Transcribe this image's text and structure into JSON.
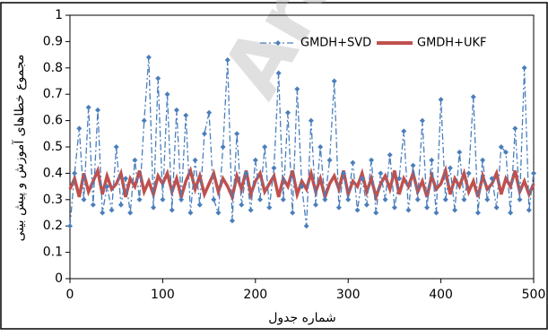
{
  "chart_data": {
    "type": "line",
    "y_label": "مجموع خطاهای آموزش و پیش بینی",
    "x_label": "شماره جدول",
    "watermark": "Arc",
    "xlim": [
      0,
      500
    ],
    "xticks": [
      0,
      100,
      200,
      300,
      400,
      500
    ],
    "ylim": [
      0,
      1
    ],
    "yticks": [
      0,
      0.1,
      0.2,
      0.3,
      0.4,
      0.5,
      0.6,
      0.7,
      0.8,
      0.9,
      1
    ],
    "legend": "top-right",
    "x": [
      0,
      5,
      10,
      15,
      20,
      25,
      30,
      35,
      40,
      45,
      50,
      55,
      60,
      65,
      70,
      75,
      80,
      85,
      90,
      95,
      100,
      105,
      110,
      115,
      120,
      125,
      130,
      135,
      140,
      145,
      150,
      155,
      160,
      165,
      170,
      175,
      180,
      185,
      190,
      195,
      200,
      205,
      210,
      215,
      220,
      225,
      230,
      235,
      240,
      245,
      250,
      255,
      260,
      265,
      270,
      275,
      280,
      285,
      290,
      295,
      300,
      305,
      310,
      315,
      320,
      325,
      330,
      335,
      340,
      345,
      350,
      355,
      360,
      365,
      370,
      375,
      380,
      385,
      390,
      395,
      400,
      405,
      410,
      415,
      420,
      425,
      430,
      435,
      440,
      445,
      450,
      455,
      460,
      465,
      470,
      475,
      480,
      485,
      490,
      495,
      500
    ],
    "series": [
      {
        "name": "GMDH+SVD",
        "color": "#4a7ebb",
        "values": [
          0.2,
          0.4,
          0.57,
          0.3,
          0.65,
          0.28,
          0.64,
          0.25,
          0.35,
          0.26,
          0.5,
          0.28,
          0.38,
          0.25,
          0.45,
          0.3,
          0.6,
          0.84,
          0.27,
          0.76,
          0.3,
          0.7,
          0.26,
          0.64,
          0.3,
          0.62,
          0.25,
          0.45,
          0.28,
          0.55,
          0.63,
          0.3,
          0.25,
          0.5,
          0.83,
          0.22,
          0.55,
          0.28,
          0.4,
          0.26,
          0.45,
          0.3,
          0.5,
          0.27,
          0.42,
          0.78,
          0.3,
          0.63,
          0.25,
          0.72,
          0.35,
          0.2,
          0.6,
          0.28,
          0.5,
          0.3,
          0.45,
          0.75,
          0.27,
          0.4,
          0.3,
          0.44,
          0.26,
          0.38,
          0.28,
          0.45,
          0.25,
          0.4,
          0.3,
          0.47,
          0.27,
          0.38,
          0.56,
          0.26,
          0.43,
          0.3,
          0.6,
          0.27,
          0.45,
          0.25,
          0.68,
          0.3,
          0.42,
          0.26,
          0.48,
          0.3,
          0.4,
          0.69,
          0.25,
          0.45,
          0.3,
          0.38,
          0.27,
          0.5,
          0.48,
          0.25,
          0.57,
          0.3,
          0.8,
          0.26,
          0.4
        ]
      },
      {
        "name": "GMDH+UKF",
        "color": "#c0504d",
        "values": [
          0.34,
          0.38,
          0.31,
          0.4,
          0.33,
          0.37,
          0.41,
          0.32,
          0.39,
          0.34,
          0.36,
          0.4,
          0.31,
          0.38,
          0.35,
          0.41,
          0.33,
          0.37,
          0.32,
          0.39,
          0.36,
          0.4,
          0.33,
          0.38,
          0.31,
          0.37,
          0.41,
          0.34,
          0.39,
          0.32,
          0.36,
          0.4,
          0.33,
          0.38,
          0.35,
          0.31,
          0.39,
          0.34,
          0.41,
          0.32,
          0.37,
          0.4,
          0.33,
          0.36,
          0.39,
          0.31,
          0.38,
          0.35,
          0.41,
          0.32,
          0.37,
          0.34,
          0.4,
          0.33,
          0.38,
          0.31,
          0.36,
          0.39,
          0.34,
          0.41,
          0.32,
          0.37,
          0.35,
          0.4,
          0.33,
          0.38,
          0.31,
          0.36,
          0.39,
          0.34,
          0.41,
          0.32,
          0.38,
          0.35,
          0.4,
          0.33,
          0.37,
          0.31,
          0.39,
          0.34,
          0.36,
          0.41,
          0.32,
          0.38,
          0.35,
          0.4,
          0.33,
          0.37,
          0.31,
          0.39,
          0.34,
          0.36,
          0.4,
          0.32,
          0.38,
          0.35,
          0.41,
          0.33,
          0.37,
          0.32,
          0.36
        ]
      }
    ]
  }
}
